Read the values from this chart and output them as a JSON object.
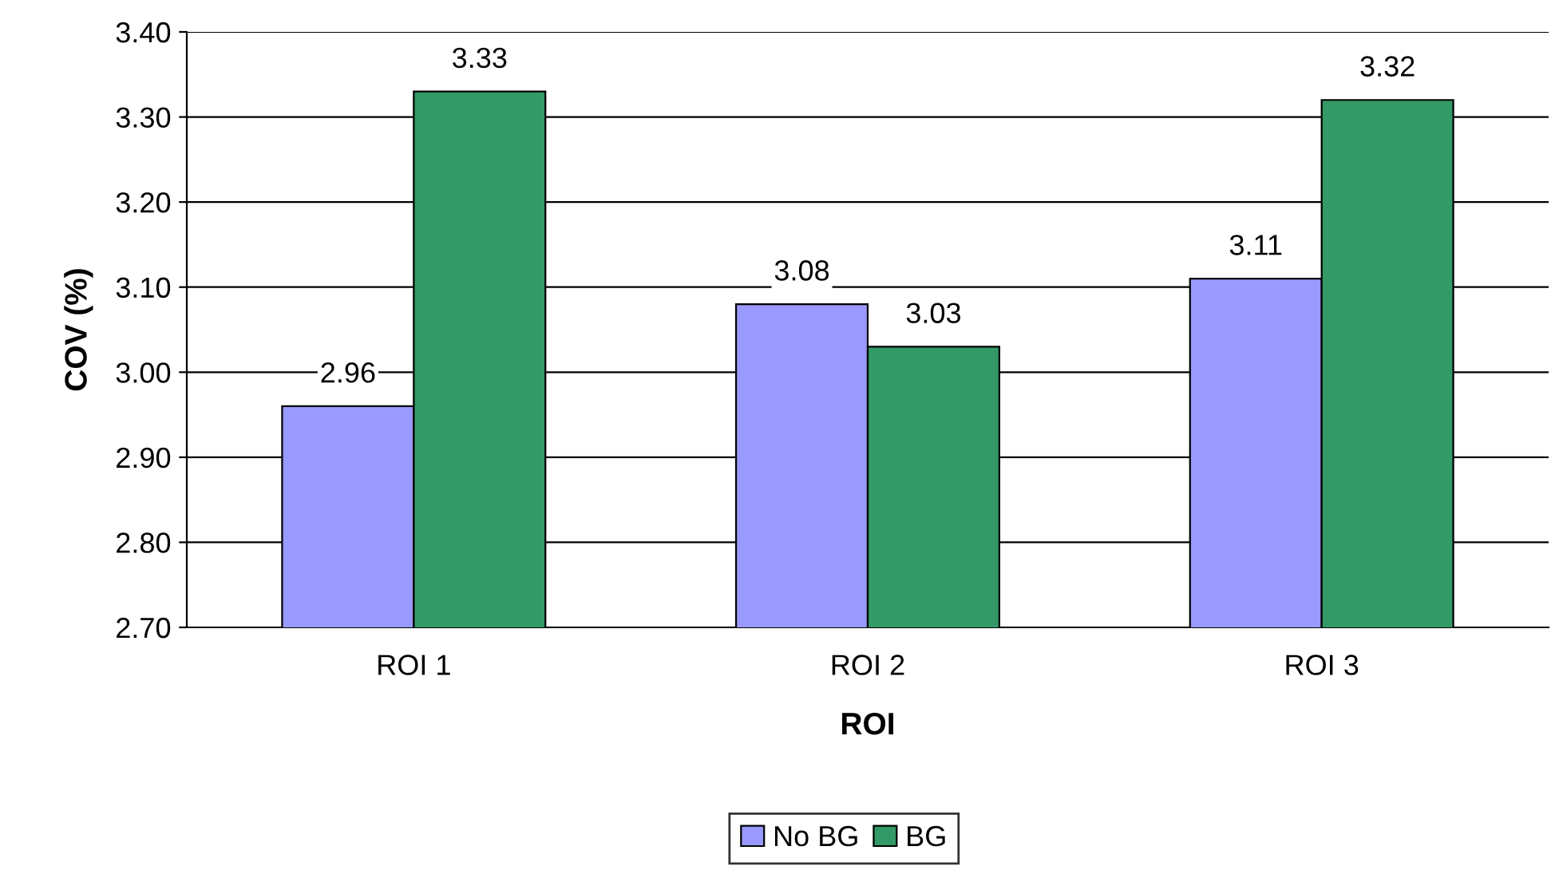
{
  "chart_data": {
    "type": "bar",
    "xlabel": "ROI",
    "ylabel": "COV (%)",
    "categories": [
      "ROI 1",
      "ROI 2",
      "ROI 3"
    ],
    "series": [
      {
        "name": "No BG",
        "color": "#9999ff",
        "values": [
          2.96,
          3.08,
          3.11
        ]
      },
      {
        "name": "BG",
        "color": "#339966",
        "values": [
          3.33,
          3.03,
          3.32
        ]
      }
    ],
    "ylim": [
      2.7,
      3.4
    ],
    "yticks": [
      {
        "value": 2.7,
        "label": "2.70"
      },
      {
        "value": 2.8,
        "label": "2.80"
      },
      {
        "value": 2.9,
        "label": "2.90"
      },
      {
        "value": 3.0,
        "label": "3.00"
      },
      {
        "value": 3.1,
        "label": "3.10"
      },
      {
        "value": 3.2,
        "label": "3.20"
      },
      {
        "value": 3.3,
        "label": "3.30"
      },
      {
        "value": 3.4,
        "label": "3.40"
      }
    ],
    "grid": "y",
    "legend": "bottom",
    "data_labels": true
  }
}
